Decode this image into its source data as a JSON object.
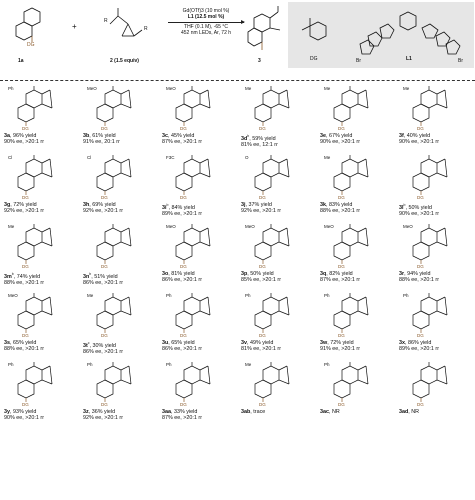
{
  "header": {
    "compound_1": "1a",
    "compound_1_group": "DG",
    "plus": "+",
    "compound_2": "2 (1.5 equiv)",
    "r1_label": "R",
    "r2_label": "R",
    "catalyst": "Gd(OTf)3 (10 mol %)",
    "ligand": "L1 (12.5 mol %)",
    "solvent": "THF (0.1 M), -65 °C",
    "light": "452 nm LEDs, Ar, 72 h",
    "product": "3",
    "dg_label": "DG",
    "ligand_label": "L1",
    "br_label": "Br"
  },
  "entries": [
    {
      "id": "3a",
      "sup": "",
      "yield": "96% yield",
      "sel": "90% ee, >20:1 rr",
      "sub": "Ph"
    },
    {
      "id": "3b",
      "sup": "",
      "yield": "61% yield",
      "sel": "91% ee, 20:1 rr",
      "sub": "MeO"
    },
    {
      "id": "3c",
      "sup": "",
      "yield": "45% yield",
      "sel": "87% ee, >20:1 rr",
      "sub": "MeO"
    },
    {
      "id": "3d",
      "sup": "b",
      "yield": "59% yield",
      "sel": "81% ee, 12:1 rr",
      "sub": "Me"
    },
    {
      "id": "3e",
      "sup": "",
      "yield": "67% yield",
      "sel": "90% ee, >20:1 rr",
      "sub": "Me"
    },
    {
      "id": "3f",
      "sup": "",
      "yield": "40% yield",
      "sel": "90% ee, >20:1 rr",
      "sub": "Me"
    },
    {
      "id": "3g",
      "sup": "",
      "yield": "72% yield",
      "sel": "92% ee, >20:1 rr",
      "sub": "Cl"
    },
    {
      "id": "3h",
      "sup": "",
      "yield": "69% yield",
      "sel": "92% ee, >20:1 rr",
      "sub": "Cl"
    },
    {
      "id": "3i",
      "sup": "b",
      "yield": "84% yield",
      "sel": "89% ee, >20:1 rr",
      "sub": "F3C"
    },
    {
      "id": "3j",
      "sup": "",
      "yield": "37% yield",
      "sel": "92% ee, >20:1 rr",
      "sub": "O"
    },
    {
      "id": "3k",
      "sup": "",
      "yield": "83% yield",
      "sel": "88% ee, >20:1 rr",
      "sub": "Me"
    },
    {
      "id": "3l",
      "sup": "b",
      "yield": "50% yield",
      "sel": "90% ee, >20:1 rr",
      "sub": ""
    },
    {
      "id": "3m",
      "sup": "b",
      "yield": "74% yield",
      "sel": "88% ee, >20:1 rr",
      "sub": "Me"
    },
    {
      "id": "3n",
      "sup": "b",
      "yield": "51% yield",
      "sel": "86% ee, >20:1 rr",
      "sub": ""
    },
    {
      "id": "3o",
      "sup": "",
      "yield": "81% yield",
      "sel": "86% ee, >20:1 rr",
      "sub": "MeO"
    },
    {
      "id": "3p",
      "sup": "",
      "yield": "50% yield",
      "sel": "85% ee, >20:1 rr",
      "sub": "MeO"
    },
    {
      "id": "3q",
      "sup": "",
      "yield": "82% yield",
      "sel": "87% ee, >20:1 rr",
      "sub": "MeO"
    },
    {
      "id": "3r",
      "sup": "",
      "yield": "94% yield",
      "sel": "88% ee, >20:1 rr",
      "sub": "MeO"
    },
    {
      "id": "3s",
      "sup": "",
      "yield": "65% yield",
      "sel": "88% ee, >20:1 rr",
      "sub": "MeO"
    },
    {
      "id": "3t",
      "sup": "c",
      "yield": "30% yield",
      "sel": "86% ee, >20:1 rr",
      "sub": "Me"
    },
    {
      "id": "3u",
      "sup": "",
      "yield": "65% yield",
      "sel": "86% ee, >20:1 rr",
      "sub": "Ph"
    },
    {
      "id": "3v",
      "sup": "",
      "yield": "49% yield",
      "sel": "81% ee, >20:1 rr",
      "sub": "Ph"
    },
    {
      "id": "3w",
      "sup": "",
      "yield": "72% yield",
      "sel": "91% ee, >20:1 rr",
      "sub": "Ph"
    },
    {
      "id": "3x",
      "sup": "",
      "yield": "86% yield",
      "sel": "89% ee, >20:1 rr",
      "sub": "Ph"
    },
    {
      "id": "3y",
      "sup": "",
      "yield": "93% yield",
      "sel": "90% ee, >20:1 rr",
      "sub": "Ph"
    },
    {
      "id": "3z",
      "sup": "",
      "yield": "36% yield",
      "sel": "92% ee, >20:1 rr",
      "sub": "Ph"
    },
    {
      "id": "3aa",
      "sup": "",
      "yield": "33% yield",
      "sel": "87% ee, >20:1 rr",
      "sub": "Ph"
    },
    {
      "id": "3ab",
      "sup": "",
      "yield": "trace",
      "sel": "",
      "sub": "Me"
    },
    {
      "id": "3ac",
      "sup": "",
      "yield": "NR",
      "sel": "",
      "sub": "Ph"
    },
    {
      "id": "3ad",
      "sup": "",
      "yield": "NR",
      "sel": "",
      "sub": ""
    }
  ],
  "colors": {
    "dg": "#8a5a2b",
    "box": "#e6e6e6",
    "ink": "#111111"
  }
}
